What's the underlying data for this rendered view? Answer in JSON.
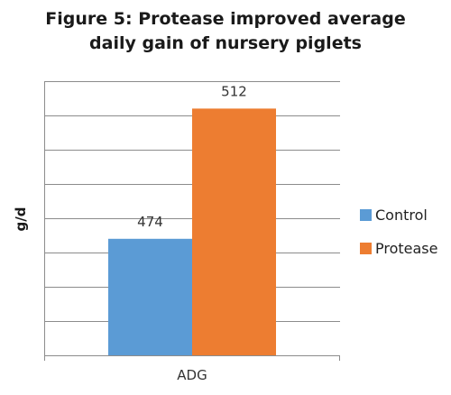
{
  "chart_data": {
    "type": "bar",
    "title_lines": [
      "Figure 5: Protease improved average",
      "daily gain of nursery piglets"
    ],
    "categories": [
      "ADG"
    ],
    "series": [
      {
        "name": "Control",
        "values": [
          474
        ],
        "color": "#5B9BD5"
      },
      {
        "name": "Protease",
        "values": [
          512
        ],
        "color": "#ED7D31"
      }
    ],
    "data_labels": [
      "474",
      "512"
    ],
    "xlabel": "",
    "ylabel": "g/d",
    "ylim": [
      440,
      520
    ],
    "y_gridline_step": 10,
    "y_tick_labels_shown": false,
    "grid": true,
    "legend_position": "right"
  }
}
